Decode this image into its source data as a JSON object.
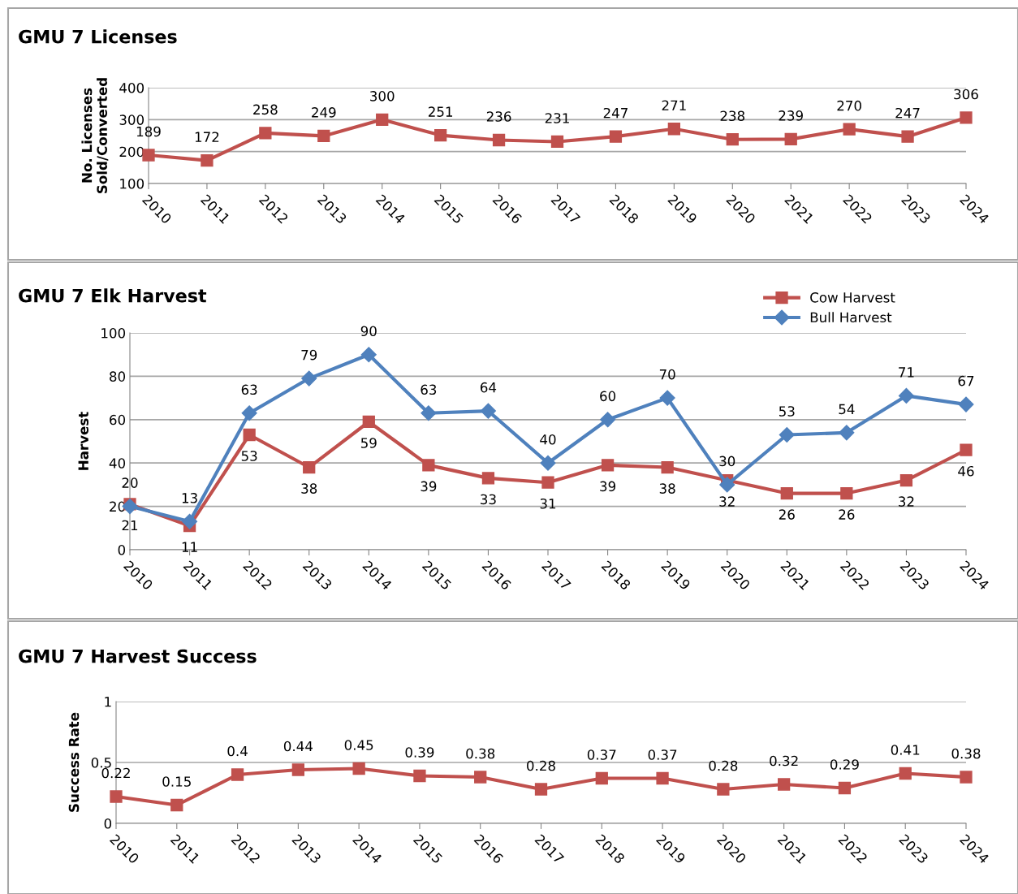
{
  "chart_data": [
    {
      "type": "line",
      "title": "GMU 7 Licenses",
      "ylabel": "No. Licenses\nSold/Converted",
      "categories": [
        "2010",
        "2011",
        "2012",
        "2013",
        "2014",
        "2015",
        "2016",
        "2017",
        "2018",
        "2019",
        "2020",
        "2021",
        "2022",
        "2023",
        "2024"
      ],
      "series": [
        {
          "color": "#c0504d",
          "values": [
            189,
            172,
            258,
            249,
            300,
            251,
            236,
            231,
            247,
            271,
            238,
            239,
            270,
            247,
            306
          ]
        }
      ],
      "ylim": [
        100,
        400
      ],
      "yticks": [
        100,
        200,
        300,
        400
      ],
      "grid": "y",
      "marker": "square",
      "line_style": "solid",
      "data_labels": true,
      "legend": false
    },
    {
      "type": "line",
      "title": "GMU 7 Elk Harvest",
      "ylabel": "Harvest",
      "categories": [
        "2010",
        "2011",
        "2012",
        "2013",
        "2014",
        "2015",
        "2016",
        "2017",
        "2018",
        "2019",
        "2020",
        "2021",
        "2022",
        "2023",
        "2024"
      ],
      "series": [
        {
          "name": "Cow Harvest",
          "color": "#c0504d",
          "marker": "square",
          "values": [
            21,
            11,
            53,
            38,
            59,
            39,
            33,
            31,
            39,
            38,
            32,
            26,
            26,
            32,
            46
          ]
        },
        {
          "name": "Bull Harvest",
          "color": "#4f81bd",
          "marker": "diamond",
          "values": [
            20,
            13,
            63,
            79,
            90,
            63,
            64,
            40,
            60,
            70,
            30,
            53,
            54,
            71,
            67
          ]
        }
      ],
      "ylim": [
        0,
        100
      ],
      "yticks": [
        0,
        20,
        40,
        60,
        80,
        100
      ],
      "grid": "y",
      "line_style": "solid",
      "data_labels": true,
      "legend": "top right"
    },
    {
      "type": "line",
      "title": "GMU 7 Harvest Success",
      "ylabel": "Success Rate",
      "categories": [
        "2010",
        "2011",
        "2012",
        "2013",
        "2014",
        "2015",
        "2016",
        "2017",
        "2018",
        "2019",
        "2020",
        "2021",
        "2022",
        "2023",
        "2024"
      ],
      "series": [
        {
          "color": "#c0504d",
          "values": [
            0.22,
            0.15,
            0.4,
            0.44,
            0.45,
            0.39,
            0.38,
            0.28,
            0.37,
            0.37,
            0.28,
            0.32,
            0.29,
            0.41,
            0.38
          ]
        }
      ],
      "ylim": [
        0,
        1
      ],
      "yticks": [
        0,
        0.5,
        1
      ],
      "grid": "y",
      "marker": "square",
      "line_style": "solid",
      "data_labels": true,
      "legend": false
    }
  ]
}
